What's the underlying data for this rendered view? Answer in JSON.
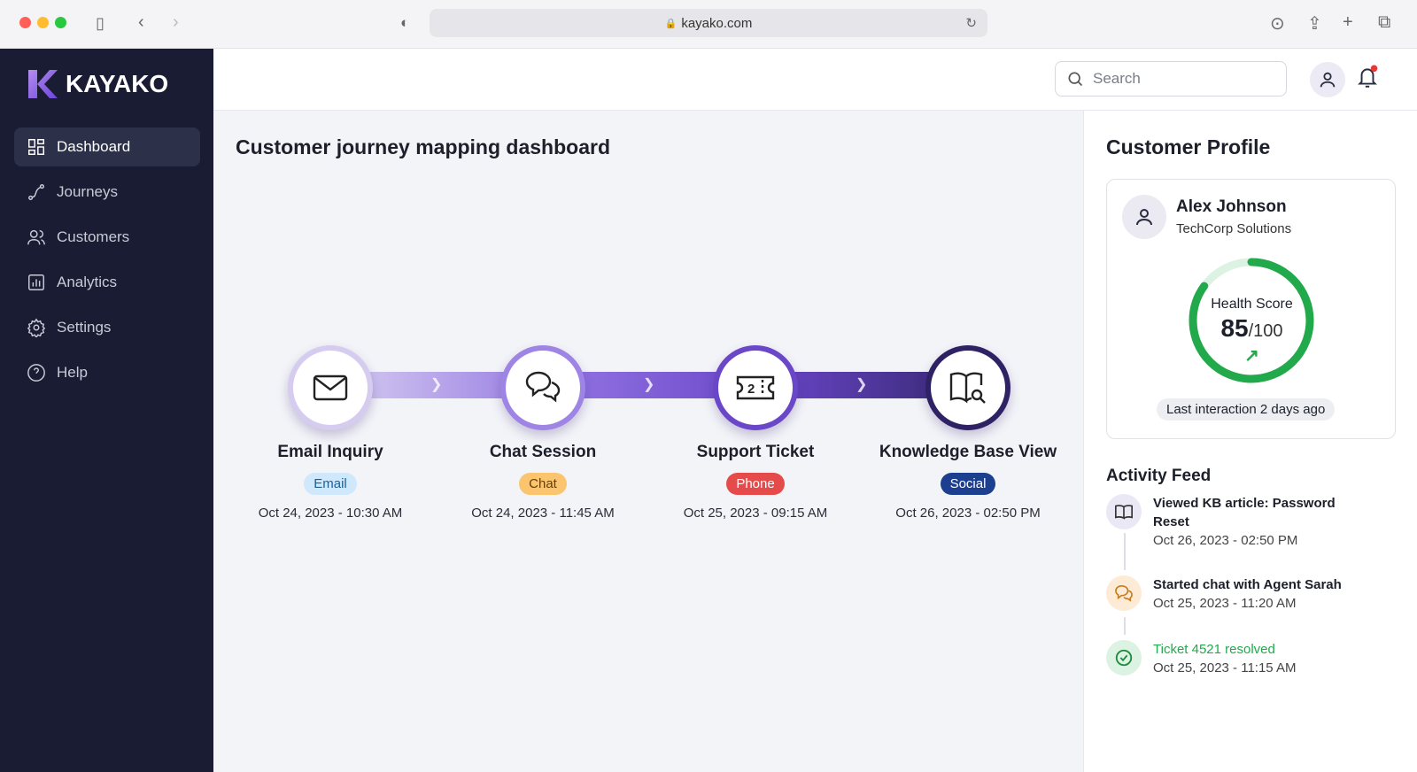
{
  "browser": {
    "url": "kayako.com"
  },
  "sidebar": {
    "brand": "KAYAKO",
    "items": [
      {
        "label": "Dashboard",
        "icon": "dashboard-icon",
        "active": true
      },
      {
        "label": "Journeys",
        "icon": "route-icon"
      },
      {
        "label": "Customers",
        "icon": "users-icon"
      },
      {
        "label": "Analytics",
        "icon": "chart-icon"
      },
      {
        "label": "Settings",
        "icon": "gear-icon"
      },
      {
        "label": "Help",
        "icon": "help-icon"
      }
    ]
  },
  "header": {
    "search_placeholder": "Search"
  },
  "main": {
    "title": "Customer journey mapping dashboard",
    "steps": [
      {
        "name": "Email Inquiry",
        "channel": "Email",
        "date": "Oct 24, 2023 - 10:30 AM",
        "icon": "mail-icon",
        "badge_bg": "#cfe8fb",
        "badge_fg": "#1f5f8f"
      },
      {
        "name": "Chat Session",
        "channel": "Chat",
        "date": "Oct 24, 2023 - 11:45 AM",
        "icon": "chat-icon",
        "badge_bg": "#fbc46e",
        "badge_fg": "#6a3e00"
      },
      {
        "name": "Support Ticket",
        "channel": "Phone",
        "date": "Oct 25, 2023 - 09:15 AM",
        "icon": "ticket-icon",
        "badge_bg": "#e64b4b",
        "badge_fg": "#ffffff"
      },
      {
        "name": "Knowledge Base View",
        "channel": "Social",
        "date": "Oct 26, 2023 - 02:50 PM",
        "icon": "book-search-icon",
        "badge_bg": "#1d3f8f",
        "badge_fg": "#ffffff"
      }
    ]
  },
  "profile": {
    "title": "Customer Profile",
    "name": "Alex Johnson",
    "company": "TechCorp Solutions",
    "health_label": "Health Score",
    "health_score": "85",
    "health_max": "/100",
    "health_fraction": 0.85,
    "last_interaction": "Last interaction 2 days ago"
  },
  "activity": {
    "title": "Activity Feed",
    "items": [
      {
        "title": "Viewed KB article: Password Reset",
        "date": "Oct 26, 2023 - 02:50 PM",
        "icon": "book-icon"
      },
      {
        "title": "Started chat with Agent Sarah",
        "date": "Oct 25, 2023 - 11:20 AM",
        "icon": "chat-icon"
      },
      {
        "title": "Ticket 4521 resolved",
        "date": "Oct 25, 2023 - 11:15 AM",
        "icon": "check-circle-icon"
      }
    ]
  }
}
